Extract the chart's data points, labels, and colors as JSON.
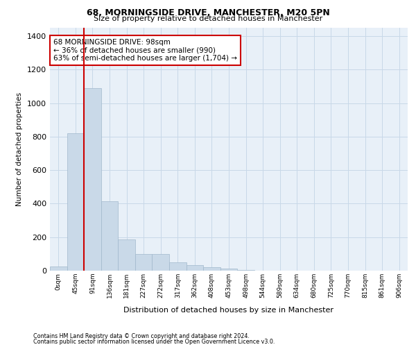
{
  "title": "68, MORNINGSIDE DRIVE, MANCHESTER, M20 5PN",
  "subtitle": "Size of property relative to detached houses in Manchester",
  "xlabel": "Distribution of detached houses by size in Manchester",
  "ylabel": "Number of detached properties",
  "footer_line1": "Contains HM Land Registry data © Crown copyright and database right 2024.",
  "footer_line2": "Contains public sector information licensed under the Open Government Licence v3.0.",
  "annotation_line1": "68 MORNINGSIDE DRIVE: 98sqm",
  "annotation_line2": "← 36% of detached houses are smaller (990)",
  "annotation_line3": "63% of semi-detached houses are larger (1,704) →",
  "bar_labels": [
    "0sqm",
    "45sqm",
    "91sqm",
    "136sqm",
    "181sqm",
    "227sqm",
    "272sqm",
    "317sqm",
    "362sqm",
    "408sqm",
    "453sqm",
    "498sqm",
    "544sqm",
    "589sqm",
    "634sqm",
    "680sqm",
    "725sqm",
    "770sqm",
    "815sqm",
    "861sqm",
    "906sqm"
  ],
  "bar_values": [
    25,
    820,
    1090,
    415,
    185,
    100,
    100,
    50,
    32,
    22,
    13,
    5,
    2,
    1,
    0,
    0,
    0,
    0,
    0,
    0,
    0
  ],
  "bar_color": "#c9d9e8",
  "bar_edgecolor": "#a0b8cc",
  "red_line_x": 2,
  "red_line_color": "#cc0000",
  "annotation_box_color": "#cc0000",
  "annotation_box_facecolor": "#ffffff",
  "ylim": [
    0,
    1450
  ],
  "yticks": [
    0,
    200,
    400,
    600,
    800,
    1000,
    1200,
    1400
  ],
  "grid_color": "#c8d8e8",
  "plot_background": "#e8f0f8"
}
